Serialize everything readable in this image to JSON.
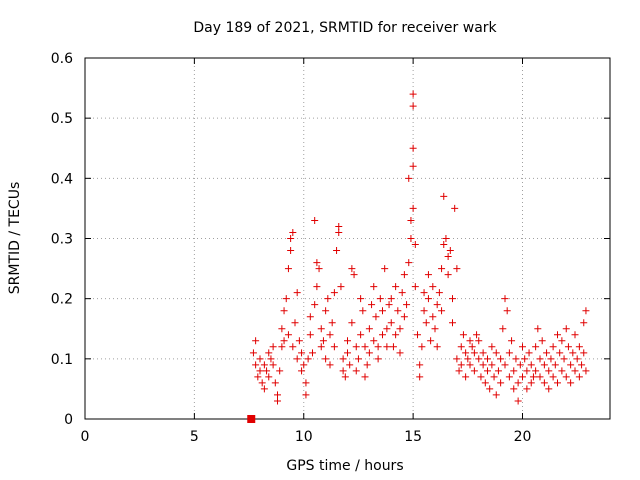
{
  "chart_data": {
    "type": "scatter",
    "title": "Day 189 of 2021, SRMTID for receiver wark",
    "xlabel": "GPS time / hours",
    "ylabel": "SRMTID / TECUs",
    "xlim": [
      0,
      24
    ],
    "ylim": [
      0,
      0.6
    ],
    "xticks": [
      0,
      5,
      10,
      15,
      20
    ],
    "yticks": [
      0,
      0.1,
      0.2,
      0.3,
      0.4,
      0.5,
      0.6
    ],
    "xtick_labels": [
      "0",
      "5",
      "10",
      "15",
      "20"
    ],
    "ytick_labels": [
      "0",
      "0.1",
      "0.2",
      "0.3",
      "0.4",
      "0.5",
      "0.6"
    ],
    "grid": true,
    "marker": "plus",
    "color": "#e00000",
    "extra_marker": {
      "shape": "square",
      "x": 7.6,
      "y": 0.0
    },
    "series": [
      {
        "name": "SRMTID",
        "points": [
          [
            7.7,
            0.11
          ],
          [
            7.8,
            0.09
          ],
          [
            7.8,
            0.13
          ],
          [
            7.9,
            0.07
          ],
          [
            8.0,
            0.08
          ],
          [
            8.0,
            0.1
          ],
          [
            8.1,
            0.06
          ],
          [
            8.2,
            0.09
          ],
          [
            8.2,
            0.05
          ],
          [
            8.3,
            0.08
          ],
          [
            8.4,
            0.07
          ],
          [
            8.4,
            0.11
          ],
          [
            8.5,
            0.1
          ],
          [
            8.6,
            0.09
          ],
          [
            8.6,
            0.12
          ],
          [
            8.7,
            0.06
          ],
          [
            8.8,
            0.04
          ],
          [
            8.8,
            0.03
          ],
          [
            8.9,
            0.08
          ],
          [
            9.0,
            0.12
          ],
          [
            9.0,
            0.15
          ],
          [
            9.1,
            0.13
          ],
          [
            9.1,
            0.18
          ],
          [
            9.2,
            0.2
          ],
          [
            9.3,
            0.14
          ],
          [
            9.3,
            0.25
          ],
          [
            9.4,
            0.28
          ],
          [
            9.4,
            0.3
          ],
          [
            9.5,
            0.31
          ],
          [
            9.5,
            0.12
          ],
          [
            9.6,
            0.16
          ],
          [
            9.7,
            0.1
          ],
          [
            9.7,
            0.21
          ],
          [
            9.8,
            0.13
          ],
          [
            9.9,
            0.11
          ],
          [
            9.9,
            0.08
          ],
          [
            10.0,
            0.09
          ],
          [
            10.1,
            0.06
          ],
          [
            10.1,
            0.04
          ],
          [
            10.2,
            0.1
          ],
          [
            10.3,
            0.14
          ],
          [
            10.3,
            0.17
          ],
          [
            10.4,
            0.11
          ],
          [
            10.5,
            0.19
          ],
          [
            10.5,
            0.33
          ],
          [
            10.6,
            0.22
          ],
          [
            10.6,
            0.26
          ],
          [
            10.7,
            0.25
          ],
          [
            10.8,
            0.15
          ],
          [
            10.8,
            0.12
          ],
          [
            10.9,
            0.13
          ],
          [
            11.0,
            0.1
          ],
          [
            11.0,
            0.18
          ],
          [
            11.1,
            0.2
          ],
          [
            11.2,
            0.14
          ],
          [
            11.2,
            0.09
          ],
          [
            11.3,
            0.16
          ],
          [
            11.4,
            0.21
          ],
          [
            11.4,
            0.12
          ],
          [
            11.5,
            0.28
          ],
          [
            11.6,
            0.32
          ],
          [
            11.6,
            0.31
          ],
          [
            11.7,
            0.22
          ],
          [
            11.8,
            0.08
          ],
          [
            11.8,
            0.1
          ],
          [
            11.9,
            0.07
          ],
          [
            12.0,
            0.13
          ],
          [
            12.0,
            0.11
          ],
          [
            12.1,
            0.09
          ],
          [
            12.2,
            0.16
          ],
          [
            12.2,
            0.25
          ],
          [
            12.3,
            0.24
          ],
          [
            12.4,
            0.12
          ],
          [
            12.4,
            0.08
          ],
          [
            12.5,
            0.1
          ],
          [
            12.6,
            0.14
          ],
          [
            12.6,
            0.2
          ],
          [
            12.7,
            0.18
          ],
          [
            12.8,
            0.12
          ],
          [
            12.8,
            0.07
          ],
          [
            12.9,
            0.09
          ],
          [
            13.0,
            0.11
          ],
          [
            13.0,
            0.15
          ],
          [
            13.1,
            0.19
          ],
          [
            13.2,
            0.22
          ],
          [
            13.2,
            0.13
          ],
          [
            13.3,
            0.17
          ],
          [
            13.4,
            0.12
          ],
          [
            13.4,
            0.1
          ],
          [
            13.5,
            0.2
          ],
          [
            13.6,
            0.18
          ],
          [
            13.6,
            0.14
          ],
          [
            13.7,
            0.25
          ],
          [
            13.8,
            0.15
          ],
          [
            13.8,
            0.12
          ],
          [
            13.9,
            0.19
          ],
          [
            14.0,
            0.16
          ],
          [
            14.0,
            0.2
          ],
          [
            14.1,
            0.12
          ],
          [
            14.2,
            0.22
          ],
          [
            14.2,
            0.14
          ],
          [
            14.3,
            0.18
          ],
          [
            14.4,
            0.15
          ],
          [
            14.4,
            0.11
          ],
          [
            14.5,
            0.21
          ],
          [
            14.6,
            0.24
          ],
          [
            14.6,
            0.17
          ],
          [
            14.7,
            0.19
          ],
          [
            14.8,
            0.26
          ],
          [
            14.8,
            0.4
          ],
          [
            14.9,
            0.33
          ],
          [
            14.9,
            0.3
          ],
          [
            15.0,
            0.42
          ],
          [
            15.0,
            0.35
          ],
          [
            15.0,
            0.54
          ],
          [
            15.0,
            0.52
          ],
          [
            15.0,
            0.45
          ],
          [
            15.1,
            0.29
          ],
          [
            15.1,
            0.22
          ],
          [
            15.2,
            0.14
          ],
          [
            15.3,
            0.09
          ],
          [
            15.3,
            0.07
          ],
          [
            15.4,
            0.12
          ],
          [
            15.5,
            0.18
          ],
          [
            15.5,
            0.21
          ],
          [
            15.6,
            0.16
          ],
          [
            15.7,
            0.24
          ],
          [
            15.7,
            0.2
          ],
          [
            15.8,
            0.13
          ],
          [
            15.9,
            0.17
          ],
          [
            15.9,
            0.22
          ],
          [
            16.0,
            0.15
          ],
          [
            16.1,
            0.19
          ],
          [
            16.1,
            0.12
          ],
          [
            16.2,
            0.21
          ],
          [
            16.3,
            0.25
          ],
          [
            16.3,
            0.18
          ],
          [
            16.4,
            0.29
          ],
          [
            16.4,
            0.37
          ],
          [
            16.5,
            0.3
          ],
          [
            16.6,
            0.24
          ],
          [
            16.6,
            0.27
          ],
          [
            16.7,
            0.28
          ],
          [
            16.8,
            0.2
          ],
          [
            16.8,
            0.16
          ],
          [
            16.9,
            0.35
          ],
          [
            17.0,
            0.25
          ],
          [
            17.0,
            0.1
          ],
          [
            17.1,
            0.08
          ],
          [
            17.2,
            0.12
          ],
          [
            17.2,
            0.09
          ],
          [
            17.3,
            0.14
          ],
          [
            17.4,
            0.11
          ],
          [
            17.4,
            0.07
          ],
          [
            17.5,
            0.1
          ],
          [
            17.6,
            0.13
          ],
          [
            17.6,
            0.09
          ],
          [
            17.7,
            0.12
          ],
          [
            17.8,
            0.08
          ],
          [
            17.8,
            0.11
          ],
          [
            17.9,
            0.14
          ],
          [
            18.0,
            0.1
          ],
          [
            18.0,
            0.13
          ],
          [
            18.1,
            0.07
          ],
          [
            18.2,
            0.11
          ],
          [
            18.2,
            0.09
          ],
          [
            18.3,
            0.06
          ],
          [
            18.4,
            0.1
          ],
          [
            18.4,
            0.08
          ],
          [
            18.5,
            0.05
          ],
          [
            18.6,
            0.12
          ],
          [
            18.6,
            0.09
          ],
          [
            18.7,
            0.07
          ],
          [
            18.8,
            0.04
          ],
          [
            18.8,
            0.11
          ],
          [
            18.9,
            0.08
          ],
          [
            19.0,
            0.06
          ],
          [
            19.0,
            0.1
          ],
          [
            19.1,
            0.15
          ],
          [
            19.2,
            0.09
          ],
          [
            19.2,
            0.2
          ],
          [
            19.3,
            0.18
          ],
          [
            19.4,
            0.11
          ],
          [
            19.4,
            0.07
          ],
          [
            19.5,
            0.13
          ],
          [
            19.6,
            0.08
          ],
          [
            19.6,
            0.05
          ],
          [
            19.7,
            0.1
          ],
          [
            19.8,
            0.06
          ],
          [
            19.8,
            0.03
          ],
          [
            19.9,
            0.09
          ],
          [
            20.0,
            0.12
          ],
          [
            20.0,
            0.07
          ],
          [
            20.1,
            0.1
          ],
          [
            20.2,
            0.05
          ],
          [
            20.2,
            0.08
          ],
          [
            20.3,
            0.11
          ],
          [
            20.4,
            0.06
          ],
          [
            20.4,
            0.09
          ],
          [
            20.5,
            0.07
          ],
          [
            20.6,
            0.12
          ],
          [
            20.6,
            0.08
          ],
          [
            20.7,
            0.15
          ],
          [
            20.8,
            0.1
          ],
          [
            20.8,
            0.07
          ],
          [
            20.9,
            0.13
          ],
          [
            21.0,
            0.09
          ],
          [
            21.0,
            0.06
          ],
          [
            21.1,
            0.11
          ],
          [
            21.2,
            0.08
          ],
          [
            21.2,
            0.05
          ],
          [
            21.3,
            0.1
          ],
          [
            21.4,
            0.07
          ],
          [
            21.4,
            0.12
          ],
          [
            21.5,
            0.09
          ],
          [
            21.6,
            0.14
          ],
          [
            21.6,
            0.06
          ],
          [
            21.7,
            0.11
          ],
          [
            21.8,
            0.08
          ],
          [
            21.8,
            0.13
          ],
          [
            21.9,
            0.1
          ],
          [
            22.0,
            0.07
          ],
          [
            22.0,
            0.15
          ],
          [
            22.1,
            0.12
          ],
          [
            22.2,
            0.09
          ],
          [
            22.2,
            0.06
          ],
          [
            22.3,
            0.11
          ],
          [
            22.4,
            0.08
          ],
          [
            22.4,
            0.14
          ],
          [
            22.5,
            0.1
          ],
          [
            22.6,
            0.07
          ],
          [
            22.6,
            0.12
          ],
          [
            22.7,
            0.09
          ],
          [
            22.8,
            0.16
          ],
          [
            22.8,
            0.11
          ],
          [
            22.9,
            0.08
          ],
          [
            22.9,
            0.18
          ]
        ]
      }
    ]
  }
}
